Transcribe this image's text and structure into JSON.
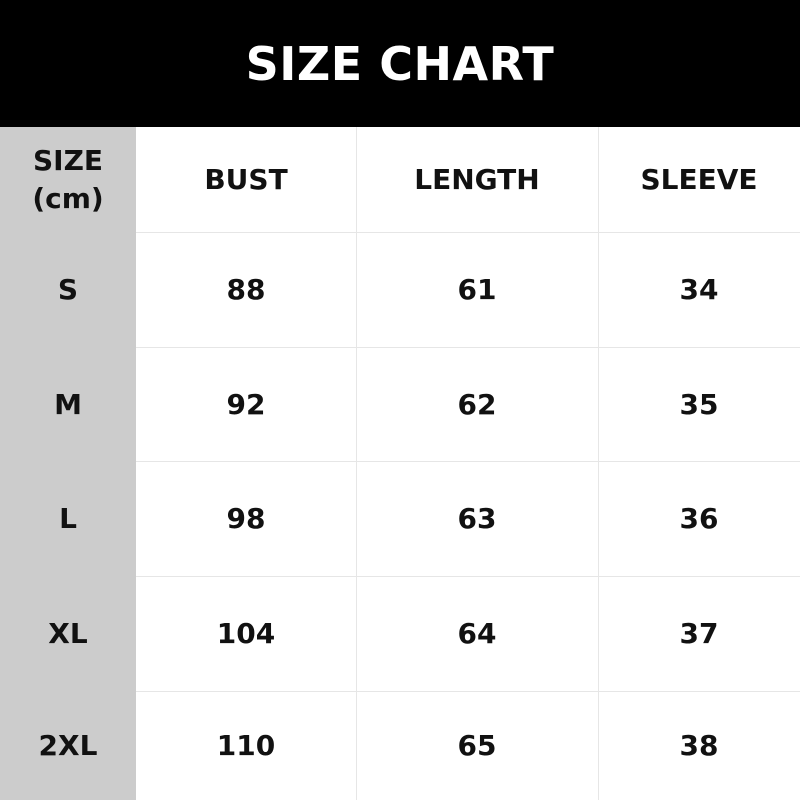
{
  "title": "SIZE CHART",
  "corner_label": {
    "line1": "SIZE",
    "line2": "(cm)"
  },
  "columns": [
    "BUST",
    "LENGTH",
    "SLEEVE"
  ],
  "rows": [
    {
      "size": "S",
      "values": [
        "88",
        "61",
        "34"
      ]
    },
    {
      "size": "M",
      "values": [
        "92",
        "62",
        "35"
      ]
    },
    {
      "size": "L",
      "values": [
        "98",
        "63",
        "36"
      ]
    },
    {
      "size": "XL",
      "values": [
        "104",
        "64",
        "37"
      ]
    },
    {
      "size": "2XL",
      "values": [
        "110",
        "65",
        "38"
      ]
    }
  ],
  "colors": {
    "banner": "#000000",
    "size_column": "#cccccc",
    "grid": "#e6e6e6"
  }
}
